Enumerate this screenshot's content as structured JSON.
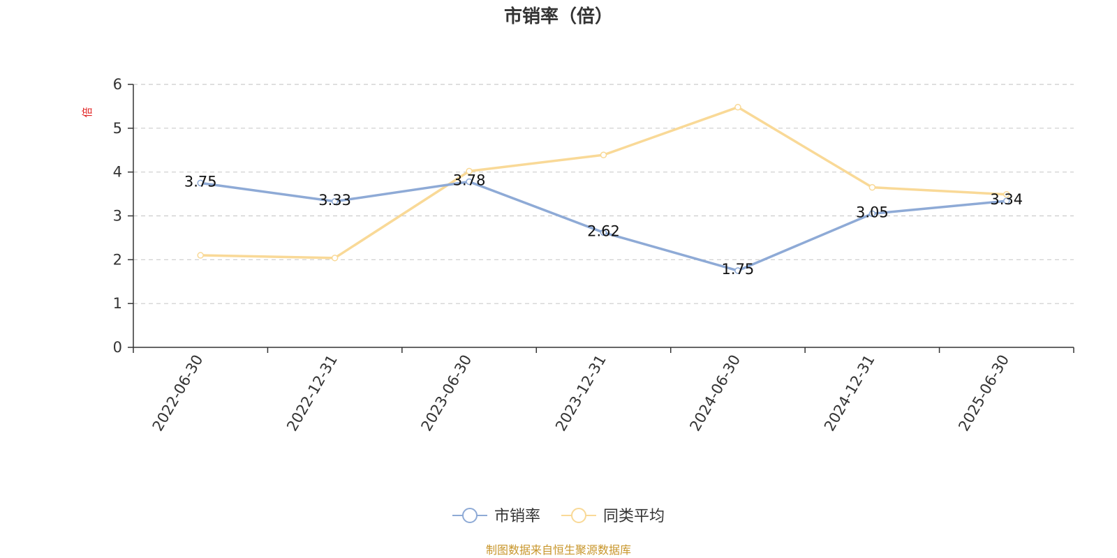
{
  "chart_data": {
    "type": "line",
    "title": "市销率（倍）",
    "ylabel": "倍",
    "xlabel": "",
    "categories": [
      "2022-06-30",
      "2022-12-31",
      "2023-06-30",
      "2023-12-31",
      "2024-06-30",
      "2024-12-31",
      "2025-06-30"
    ],
    "ylim": [
      0,
      6
    ],
    "yticks": [
      "0",
      "1",
      "2",
      "3",
      "4",
      "5",
      "6"
    ],
    "grid": true,
    "legend_position": "bottom",
    "series": [
      {
        "name": "市销率",
        "color": "#8eaad6",
        "values": [
          3.75,
          3.33,
          3.78,
          2.62,
          1.75,
          3.05,
          3.34
        ],
        "labels": [
          "3.75",
          "3.33",
          "3.78",
          "2.62",
          "1.75",
          "3.05",
          "3.34"
        ]
      },
      {
        "name": "同类平均",
        "color": "#f9d997",
        "values": [
          2.1,
          2.04,
          4.02,
          4.39,
          5.48,
          3.65,
          3.49
        ]
      }
    ],
    "source": "制图数据来自恒生聚源数据库"
  }
}
